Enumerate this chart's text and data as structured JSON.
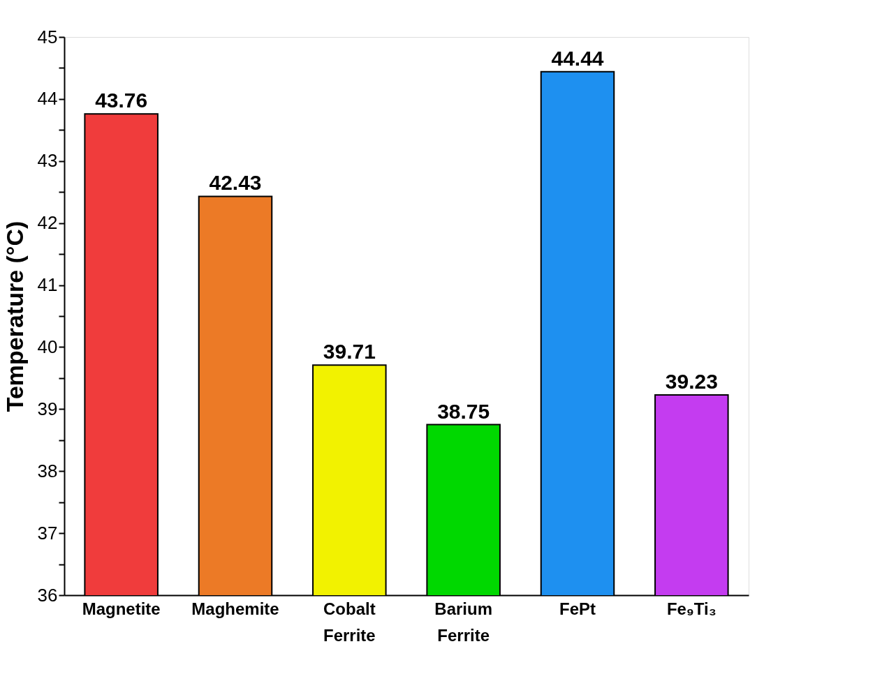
{
  "chart_data": {
    "type": "bar",
    "ylabel": "Temperature (°C)",
    "categories": [
      "Magnetite",
      "Maghemite",
      "Cobalt Ferrite",
      "Barium Ferrite",
      "FePt",
      "Fe₉Ti₃"
    ],
    "values": [
      43.76,
      42.43,
      39.71,
      38.75,
      44.44,
      39.23
    ],
    "colors": [
      "#f03c3c",
      "#ec7a26",
      "#f2f200",
      "#00d800",
      "#1e90f0",
      "#c43cf0"
    ],
    "ylim": [
      36,
      45
    ],
    "yticks": [
      36,
      {
        "value": 36.5,
        "label": null
      },
      37,
      {
        "value": 37.5,
        "label": null
      },
      38,
      {
        "value": 38.5,
        "label": null
      },
      39,
      {
        "value": 39.5,
        "label": null
      },
      40,
      {
        "value": 40.5,
        "label": null
      },
      41,
      {
        "value": 41.5,
        "label": null
      },
      42,
      {
        "value": 42.5,
        "label": null
      },
      43,
      {
        "value": 43.5,
        "label": null
      },
      44,
      {
        "value": 44.5,
        "label": null
      },
      45
    ],
    "data_labels": true,
    "grid": false,
    "legend": false
  }
}
